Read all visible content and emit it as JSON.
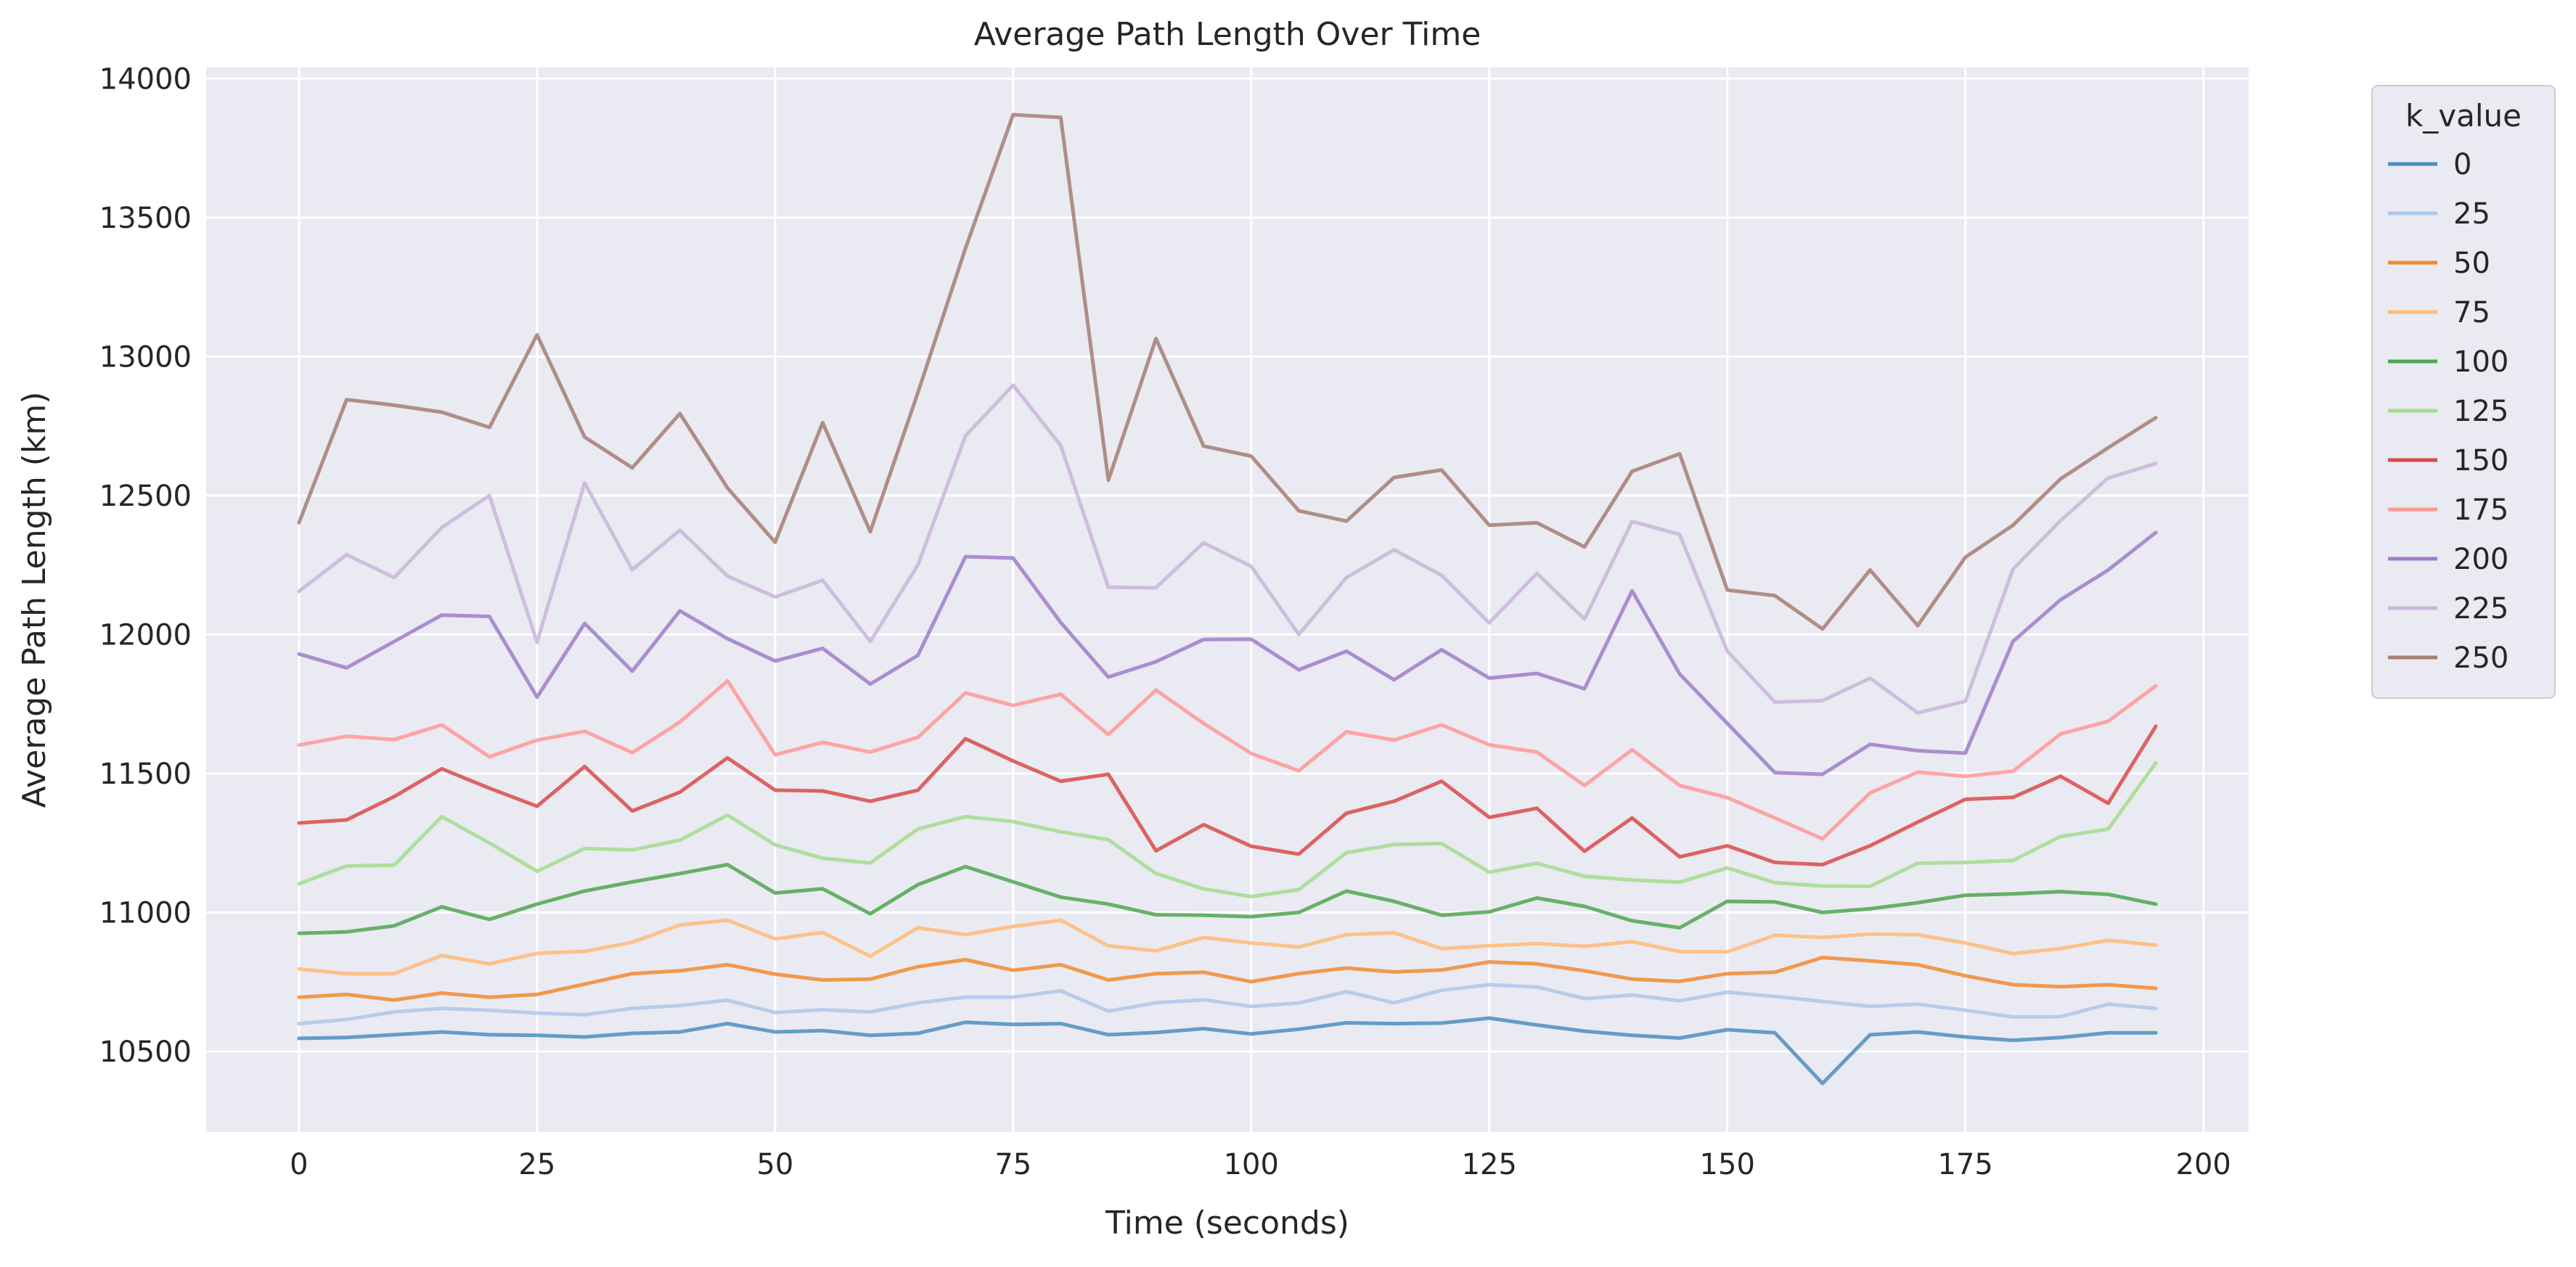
{
  "chart_data": {
    "type": "line",
    "title": "Average Path Length Over Time",
    "xlabel": "Time (seconds)",
    "ylabel": "Average Path Length (km)",
    "xlim": [
      -9.75,
      204.75
    ],
    "ylim": [
      10210,
      14040
    ],
    "xticks": [
      0,
      25,
      50,
      75,
      100,
      125,
      150,
      175,
      200
    ],
    "yticks": [
      10500,
      11000,
      11500,
      12000,
      12500,
      13000,
      13500,
      14000
    ],
    "grid": true,
    "legend": {
      "title": "k_value",
      "placement": "outside-right"
    },
    "x": [
      0,
      5,
      10,
      15,
      20,
      25,
      30,
      35,
      40,
      45,
      50,
      55,
      60,
      65,
      70,
      75,
      80,
      85,
      90,
      95,
      100,
      105,
      110,
      115,
      120,
      125,
      130,
      135,
      140,
      145,
      150,
      155,
      160,
      165,
      170,
      175,
      180,
      185,
      190,
      195
    ],
    "series": [
      {
        "name": "0",
        "color": "#4c8ec0",
        "values": [
          10547,
          10550,
          10560,
          10570,
          10560,
          10558,
          10552,
          10565,
          10570,
          10600,
          10570,
          10575,
          10558,
          10565,
          10605,
          10597,
          10600,
          10560,
          10568,
          10582,
          10563,
          10580,
          10603,
          10600,
          10602,
          10620,
          10595,
          10573,
          10558,
          10548,
          10578,
          10567,
          10385,
          10560,
          10570,
          10552,
          10540,
          10550,
          10567,
          10567
        ]
      },
      {
        "name": "25",
        "color": "#aec7e8",
        "values": [
          10600,
          10615,
          10642,
          10655,
          10648,
          10638,
          10632,
          10655,
          10665,
          10684,
          10640,
          10650,
          10642,
          10675,
          10695,
          10695,
          10718,
          10645,
          10675,
          10686,
          10662,
          10674,
          10715,
          10675,
          10720,
          10740,
          10732,
          10690,
          10703,
          10682,
          10713,
          10698,
          10680,
          10662,
          10670,
          10648,
          10624,
          10625,
          10670,
          10655
        ]
      },
      {
        "name": "50",
        "color": "#f28a30",
        "values": [
          10695,
          10705,
          10685,
          10710,
          10695,
          10705,
          10742,
          10780,
          10790,
          10812,
          10778,
          10757,
          10760,
          10805,
          10830,
          10792,
          10812,
          10757,
          10780,
          10785,
          10751,
          10780,
          10800,
          10786,
          10793,
          10822,
          10815,
          10790,
          10760,
          10752,
          10780,
          10785,
          10838,
          10826,
          10812,
          10772,
          10740,
          10733,
          10740,
          10727
        ]
      },
      {
        "name": "75",
        "color": "#ffbb78",
        "values": [
          10797,
          10780,
          10780,
          10845,
          10815,
          10853,
          10860,
          10893,
          10955,
          10972,
          10905,
          10928,
          10842,
          10945,
          10920,
          10950,
          10972,
          10880,
          10862,
          10910,
          10890,
          10876,
          10920,
          10927,
          10870,
          10880,
          10888,
          10878,
          10895,
          10859,
          10858,
          10918,
          10910,
          10922,
          10920,
          10890,
          10852,
          10870,
          10900,
          10882
        ]
      },
      {
        "name": "100",
        "color": "#4fa64f",
        "values": [
          10925,
          10930,
          10952,
          11020,
          10975,
          11030,
          11077,
          11110,
          11140,
          11172,
          11070,
          11085,
          10995,
          11100,
          11165,
          11110,
          11055,
          11030,
          10992,
          10990,
          10985,
          11000,
          11077,
          11040,
          10990,
          11002,
          11052,
          11022,
          10970,
          10945,
          11040,
          11038,
          11000,
          11013,
          11035,
          11062,
          11067,
          11075,
          11065,
          11030
        ]
      },
      {
        "name": "125",
        "color": "#a3dc8e",
        "values": [
          11103,
          11167,
          11170,
          11345,
          11250,
          11148,
          11230,
          11225,
          11260,
          11350,
          11243,
          11195,
          11178,
          11300,
          11345,
          11327,
          11290,
          11262,
          11140,
          11085,
          11057,
          11082,
          11215,
          11244,
          11248,
          11145,
          11177,
          11130,
          11117,
          11109,
          11160,
          11107,
          11095,
          11094,
          11177,
          11180,
          11187,
          11273,
          11300,
          11538
        ]
      },
      {
        "name": "150",
        "color": "#d94a4a",
        "values": [
          11322,
          11333,
          11417,
          11517,
          11447,
          11382,
          11525,
          11365,
          11433,
          11556,
          11440,
          11437,
          11400,
          11440,
          11625,
          11545,
          11472,
          11497,
          11222,
          11316,
          11238,
          11210,
          11357,
          11400,
          11472,
          11342,
          11375,
          11220,
          11340,
          11200,
          11240,
          11180,
          11172,
          11240,
          11325,
          11407,
          11414,
          11490,
          11393,
          11670
        ]
      },
      {
        "name": "175",
        "color": "#ff9896",
        "values": [
          11602,
          11634,
          11622,
          11675,
          11560,
          11620,
          11652,
          11575,
          11685,
          11833,
          11567,
          11612,
          11577,
          11630,
          11790,
          11745,
          11785,
          11640,
          11800,
          11680,
          11572,
          11510,
          11650,
          11620,
          11675,
          11603,
          11577,
          11457,
          11585,
          11457,
          11413,
          11340,
          11265,
          11430,
          11505,
          11490,
          11508,
          11642,
          11688,
          11815
        ]
      },
      {
        "name": "200",
        "color": "#9f7dc9",
        "values": [
          11930,
          11880,
          11975,
          12070,
          12065,
          11775,
          12040,
          11868,
          12085,
          11985,
          11905,
          11950,
          11822,
          11925,
          12280,
          12275,
          12043,
          11847,
          11902,
          11982,
          11983,
          11873,
          11940,
          11837,
          11945,
          11843,
          11860,
          11805,
          12157,
          11858,
          11680,
          11503,
          11497,
          11605,
          11582,
          11573,
          11975,
          12125,
          12232,
          12367
        ]
      },
      {
        "name": "225",
        "color": "#c9b5db",
        "values": [
          12155,
          12287,
          12205,
          12385,
          12500,
          11972,
          12545,
          12233,
          12375,
          12210,
          12135,
          12195,
          11975,
          12250,
          12715,
          12897,
          12680,
          12170,
          12168,
          12330,
          12245,
          12000,
          12205,
          12305,
          12213,
          12042,
          12220,
          12055,
          12407,
          12360,
          11940,
          11757,
          11762,
          11843,
          11718,
          11760,
          12235,
          12410,
          12563,
          12615
        ]
      },
      {
        "name": "250",
        "color": "#a57e74",
        "values": [
          12402,
          12845,
          12825,
          12800,
          12745,
          13078,
          12710,
          12600,
          12795,
          12527,
          12332,
          12762,
          12370,
          12870,
          13390,
          13870,
          13860,
          12555,
          13065,
          12678,
          12642,
          12445,
          12408,
          12565,
          12592,
          12393,
          12402,
          12315,
          12587,
          12650,
          12160,
          12140,
          12020,
          12232,
          12032,
          12278,
          12393,
          12560,
          12672,
          12780
        ]
      }
    ]
  }
}
